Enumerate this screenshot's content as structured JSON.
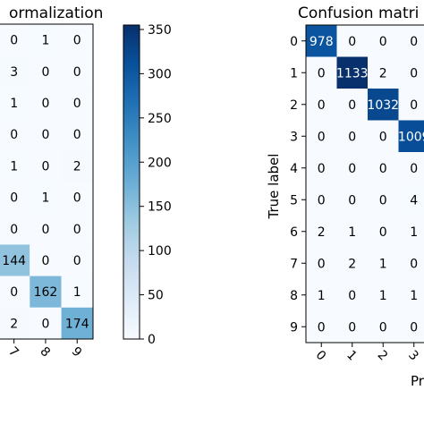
{
  "chart_data": [
    {
      "type": "heatmap",
      "title": "ormalization",
      "xlabel": "",
      "ylabel": "",
      "x_tick_labels": [
        "7",
        "8",
        "9"
      ],
      "y_tick_labels": [],
      "grid": false,
      "cmap": "Blues",
      "values": [
        [
          0,
          1,
          0
        ],
        [
          3,
          0,
          0
        ],
        [
          1,
          0,
          0
        ],
        [
          0,
          0,
          0
        ],
        [
          1,
          0,
          2
        ],
        [
          0,
          1,
          0
        ],
        [
          0,
          0,
          0
        ],
        [
          144,
          0,
          0
        ],
        [
          0,
          162,
          1
        ],
        [
          2,
          0,
          174
        ]
      ],
      "colorbar": {
        "min": 0,
        "max": 355,
        "ticks": [
          0,
          50,
          100,
          150,
          200,
          250,
          300,
          350
        ]
      }
    },
    {
      "type": "heatmap",
      "title": "Confusion matri",
      "xlabel": "Pr",
      "ylabel": "True label",
      "x_tick_labels": [
        "0",
        "1",
        "2",
        "3"
      ],
      "y_tick_labels": [
        "0",
        "1",
        "2",
        "3",
        "4",
        "5",
        "6",
        "7",
        "8",
        "9"
      ],
      "grid": false,
      "cmap": "Blues",
      "values": [
        [
          978,
          0,
          0,
          0
        ],
        [
          0,
          1133,
          2,
          0
        ],
        [
          0,
          0,
          1032,
          0
        ],
        [
          0,
          0,
          0,
          1009
        ],
        [
          0,
          0,
          0,
          0
        ],
        [
          0,
          0,
          0,
          4
        ],
        [
          2,
          1,
          0,
          1
        ],
        [
          0,
          2,
          1,
          0
        ],
        [
          1,
          0,
          1,
          1
        ],
        [
          0,
          0,
          0,
          0
        ]
      ]
    }
  ]
}
